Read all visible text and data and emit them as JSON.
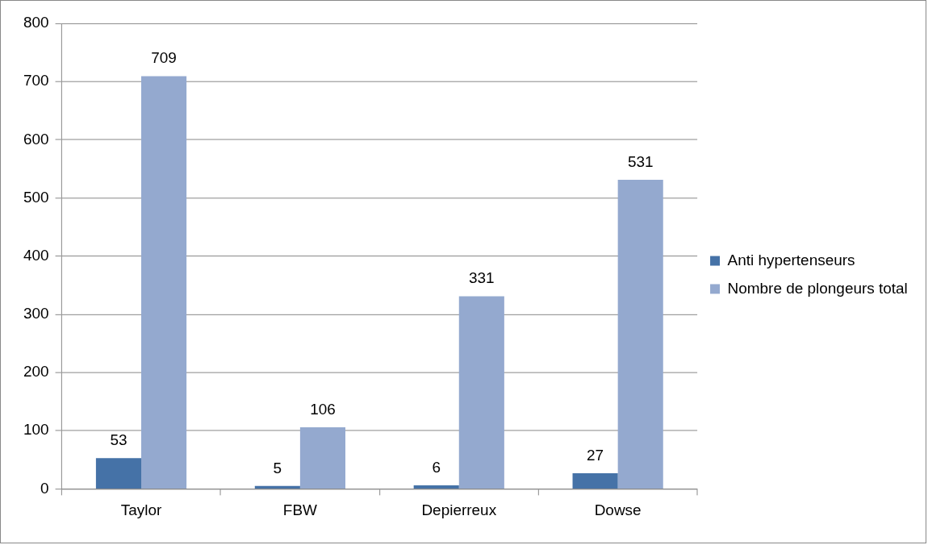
{
  "chart_data": {
    "type": "bar",
    "categories": [
      "Taylor",
      "FBW",
      "Depierreux",
      "Dowse"
    ],
    "series": [
      {
        "name": "Anti hypertenseurs",
        "color": "#4572a7",
        "values": [
          53,
          5,
          6,
          27
        ]
      },
      {
        "name": "Nombre de plongeurs total",
        "color": "#94a9cf",
        "values": [
          709,
          106,
          331,
          531
        ]
      }
    ],
    "ylim": [
      0,
      800
    ],
    "yticks": [
      0,
      100,
      200,
      300,
      400,
      500,
      600,
      700,
      800
    ],
    "grid": "y",
    "legend": "right",
    "data_labels": true
  }
}
